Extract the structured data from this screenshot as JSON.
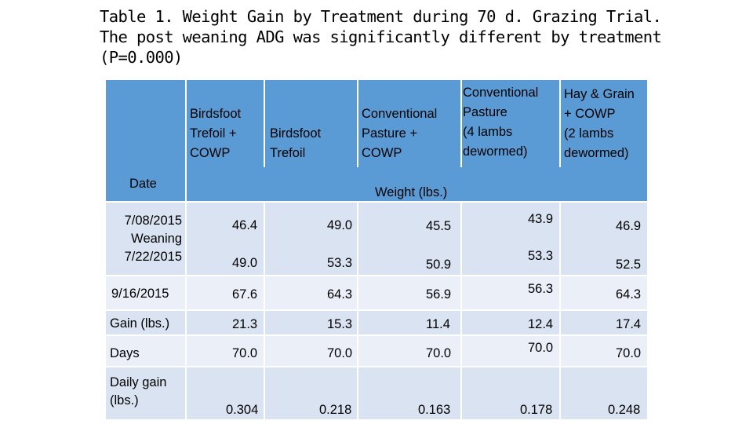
{
  "title": "Table 1. Weight Gain by Treatment during 70 d. Grazing Trial. The post weaning ADG was significantly different by treatment (P=0.000)",
  "table": {
    "headers": [
      "Birdsfoot\nTrefoil +\nCOWP",
      "Birdsfoot\nTrefoil",
      "Conventional\nPasture +\nCOWP",
      "Conventional\nPasture\n (4 lambs\ndewormed)",
      "Hay & Grain\n+ COWP\n(2 lambs\ndewormed)"
    ],
    "date_label": "Date",
    "weight_label": "Weight (lbs.)",
    "rows": [
      {
        "label": "7/08/2015\nWeaning\n7/22/2015",
        "values": [
          "46.4",
          "49.0",
          "45.5",
          "43.9",
          "46.9"
        ],
        "values2": [
          "49.0",
          "53.3",
          "50.9",
          "53.3",
          "52.5"
        ]
      },
      {
        "label": "9/16/2015",
        "values": [
          "67.6",
          "64.3",
          "56.9",
          "56.3",
          "64.3"
        ]
      },
      {
        "label": "Gain (lbs.)",
        "values": [
          "21.3",
          "15.3",
          "11.4",
          "12.4",
          "17.4"
        ]
      },
      {
        "label": "Days",
        "values": [
          "70.0",
          "70.0",
          "70.0",
          "70.0",
          "70.0"
        ]
      },
      {
        "label": "Daily gain\n(lbs.)",
        "values": [
          "0.304",
          "0.218",
          "0.163",
          "0.178",
          "0.248"
        ]
      }
    ]
  }
}
